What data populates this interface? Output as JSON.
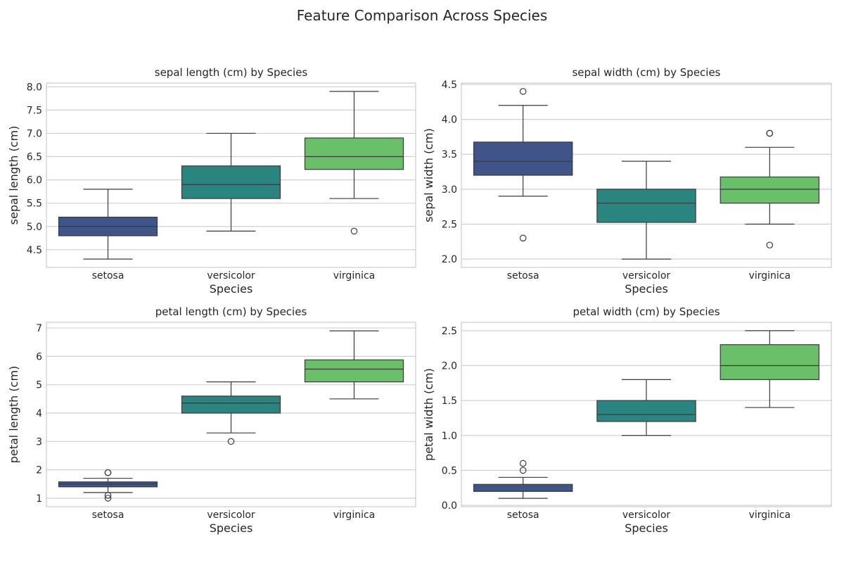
{
  "title": "Feature Comparison Across Species",
  "colors": {
    "setosa": "#3f5488",
    "versicolor": "#2a8580",
    "virginica": "#6abf69",
    "line": "#3a3a3a",
    "grid": "#d0d0d0",
    "frame": "#cccccc"
  },
  "chart_data": [
    {
      "type": "box",
      "title": "sepal length (cm) by Species",
      "xlabel": "Species",
      "ylabel": "sepal length (cm)",
      "categories": [
        "setosa",
        "versicolor",
        "virginica"
      ],
      "ylim": [
        4.12,
        8.08
      ],
      "yticks": [
        4.5,
        5.0,
        5.5,
        6.0,
        6.5,
        7.0,
        7.5,
        8.0
      ],
      "ytick_labels": [
        "4.5",
        "5.0",
        "5.5",
        "6.0",
        "6.5",
        "7.0",
        "7.5",
        "8.0"
      ],
      "boxes": [
        {
          "category": "setosa",
          "q1": 4.8,
          "median": 5.0,
          "q3": 5.2,
          "whisker_low": 4.3,
          "whisker_high": 5.8,
          "outliers": []
        },
        {
          "category": "versicolor",
          "q1": 5.6,
          "median": 5.9,
          "q3": 6.3,
          "whisker_low": 4.9,
          "whisker_high": 7.0,
          "outliers": []
        },
        {
          "category": "virginica",
          "q1": 6.225,
          "median": 6.5,
          "q3": 6.9,
          "whisker_low": 5.6,
          "whisker_high": 7.9,
          "outliers": [
            4.9
          ]
        }
      ]
    },
    {
      "type": "box",
      "title": "sepal width (cm) by Species",
      "xlabel": "Species",
      "ylabel": "sepal width (cm)",
      "categories": [
        "setosa",
        "versicolor",
        "virginica"
      ],
      "ylim": [
        1.88,
        4.52
      ],
      "yticks": [
        2.0,
        2.5,
        3.0,
        3.5,
        4.0,
        4.5
      ],
      "ytick_labels": [
        "2.0",
        "2.5",
        "3.0",
        "3.5",
        "4.0",
        "4.5"
      ],
      "boxes": [
        {
          "category": "setosa",
          "q1": 3.2,
          "median": 3.4,
          "q3": 3.675,
          "whisker_low": 2.9,
          "whisker_high": 4.2,
          "outliers": [
            2.3,
            4.4
          ]
        },
        {
          "category": "versicolor",
          "q1": 2.525,
          "median": 2.8,
          "q3": 3.0,
          "whisker_low": 2.0,
          "whisker_high": 3.4,
          "outliers": []
        },
        {
          "category": "virginica",
          "q1": 2.8,
          "median": 3.0,
          "q3": 3.175,
          "whisker_low": 2.5,
          "whisker_high": 3.6,
          "outliers": [
            2.2,
            3.8,
            3.8
          ]
        }
      ]
    },
    {
      "type": "box",
      "title": "petal length (cm) by Species",
      "xlabel": "Species",
      "ylabel": "petal length (cm)",
      "categories": [
        "setosa",
        "versicolor",
        "virginica"
      ],
      "ylim": [
        0.7,
        7.2
      ],
      "yticks": [
        1,
        2,
        3,
        4,
        5,
        6,
        7
      ],
      "ytick_labels": [
        "1",
        "2",
        "3",
        "4",
        "5",
        "6",
        "7"
      ],
      "boxes": [
        {
          "category": "setosa",
          "q1": 1.4,
          "median": 1.5,
          "q3": 1.575,
          "whisker_low": 1.2,
          "whisker_high": 1.7,
          "outliers": [
            1.0,
            1.1,
            1.9,
            1.9
          ]
        },
        {
          "category": "versicolor",
          "q1": 4.0,
          "median": 4.35,
          "q3": 4.6,
          "whisker_low": 3.3,
          "whisker_high": 5.1,
          "outliers": [
            3.0
          ]
        },
        {
          "category": "virginica",
          "q1": 5.1,
          "median": 5.55,
          "q3": 5.875,
          "whisker_low": 4.5,
          "whisker_high": 6.9,
          "outliers": []
        }
      ]
    },
    {
      "type": "box",
      "title": "petal width (cm) by Species",
      "xlabel": "Species",
      "ylabel": "petal width (cm)",
      "categories": [
        "setosa",
        "versicolor",
        "virginica"
      ],
      "ylim": [
        -0.02,
        2.62
      ],
      "yticks": [
        0.0,
        0.5,
        1.0,
        1.5,
        2.0,
        2.5
      ],
      "ytick_labels": [
        "0.0",
        "0.5",
        "1.0",
        "1.5",
        "2.0",
        "2.5"
      ],
      "boxes": [
        {
          "category": "setosa",
          "q1": 0.2,
          "median": 0.2,
          "q3": 0.3,
          "whisker_low": 0.1,
          "whisker_high": 0.4,
          "outliers": [
            0.5,
            0.6
          ]
        },
        {
          "category": "versicolor",
          "q1": 1.2,
          "median": 1.3,
          "q3": 1.5,
          "whisker_low": 1.0,
          "whisker_high": 1.8,
          "outliers": []
        },
        {
          "category": "virginica",
          "q1": 1.8,
          "median": 2.0,
          "q3": 2.3,
          "whisker_low": 1.4,
          "whisker_high": 2.5,
          "outliers": []
        }
      ]
    }
  ]
}
